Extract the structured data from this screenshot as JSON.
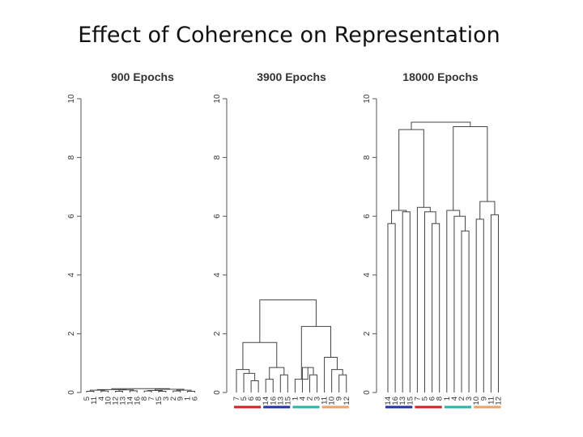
{
  "slide": {
    "title": "Effect of Coherence on Representation"
  },
  "chart_data": [
    {
      "type": "dendrogram",
      "title": "900 Epochs",
      "ylim": [
        0,
        10
      ],
      "yticks": [
        "0",
        "2",
        "4",
        "6",
        "8",
        "10"
      ],
      "leaves": [
        "5",
        "11",
        "4",
        "10",
        "12",
        "13",
        "14",
        "16",
        "8",
        "7",
        "15",
        "3",
        "2",
        "9",
        "1",
        "6"
      ],
      "merges": [
        [
          0,
          1,
          0.04
        ],
        [
          2,
          3,
          0.05
        ],
        [
          4,
          5,
          0.04
        ],
        [
          6,
          7,
          0.06
        ],
        [
          8,
          9,
          0.05
        ],
        [
          10,
          11,
          0.04
        ],
        [
          12,
          13,
          0.05
        ],
        [
          14,
          15,
          0.04
        ],
        [
          16,
          17,
          0.08
        ],
        [
          18,
          19,
          0.09
        ],
        [
          20,
          21,
          0.07
        ],
        [
          22,
          23,
          0.08
        ],
        [
          24,
          25,
          0.1
        ],
        [
          26,
          27,
          0.11
        ],
        [
          28,
          29,
          0.13
        ]
      ],
      "group_colors": []
    },
    {
      "type": "dendrogram",
      "title": "3900 Epochs",
      "ylim": [
        0,
        10
      ],
      "yticks": [
        "0",
        "2",
        "4",
        "6",
        "8",
        "10"
      ],
      "leaves": [
        "7",
        "5",
        "6",
        "8",
        "14",
        "16",
        "13",
        "15",
        "1",
        "4",
        "2",
        "3",
        "11",
        "10",
        "9",
        "12"
      ],
      "merges": [
        [
          2,
          3,
          0.4
        ],
        [
          1,
          16,
          0.65
        ],
        [
          0,
          17,
          0.78
        ],
        [
          4,
          5,
          0.45
        ],
        [
          6,
          7,
          0.6
        ],
        [
          19,
          20,
          0.85
        ],
        [
          18,
          21,
          1.7
        ],
        [
          10,
          11,
          0.6
        ],
        [
          9,
          23,
          0.85
        ],
        [
          8,
          24,
          0.45
        ],
        [
          14,
          15,
          0.6
        ],
        [
          13,
          26,
          0.78
        ],
        [
          12,
          27,
          1.2
        ],
        [
          25,
          28,
          2.25
        ],
        [
          22,
          29,
          3.15
        ]
      ],
      "group_colors": [
        "#cc2222",
        "#1f2fb0",
        "#22b5a8",
        "#f0a060"
      ]
    },
    {
      "type": "dendrogram",
      "title": "18000 Epochs",
      "ylim": [
        0,
        10
      ],
      "yticks": [
        "0",
        "2",
        "4",
        "6",
        "8",
        "10"
      ],
      "leaves": [
        "14",
        "16",
        "13",
        "15",
        "7",
        "5",
        "6",
        "8",
        "1",
        "4",
        "2",
        "3",
        "10",
        "9",
        "11",
        "12"
      ],
      "merges": [
        [
          0,
          1,
          5.75
        ],
        [
          2,
          3,
          6.15
        ],
        [
          16,
          17,
          6.2
        ],
        [
          6,
          7,
          5.75
        ],
        [
          5,
          19,
          6.15
        ],
        [
          4,
          20,
          6.3
        ],
        [
          18,
          21,
          8.95
        ],
        [
          10,
          11,
          5.5
        ],
        [
          9,
          23,
          6.0
        ],
        [
          8,
          24,
          6.2
        ],
        [
          12,
          13,
          5.9
        ],
        [
          14,
          15,
          6.05
        ],
        [
          26,
          27,
          6.5
        ],
        [
          25,
          28,
          9.05
        ],
        [
          22,
          29,
          9.2
        ]
      ],
      "group_colors": [
        "#1f2fb0",
        "#cc2222",
        "#22b5a8",
        "#f0a060"
      ]
    }
  ]
}
